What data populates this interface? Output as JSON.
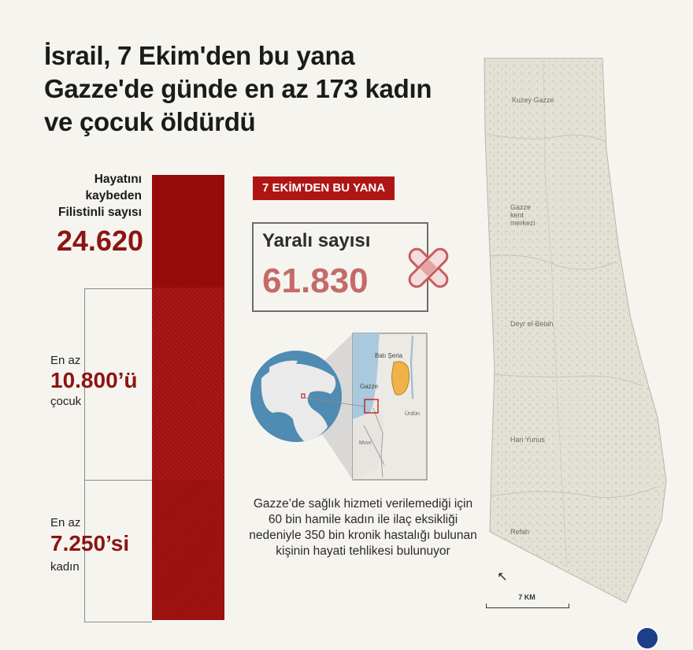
{
  "title": {
    "line1": "İsrail, 7 Ekim'den bu yana",
    "line2": "Gazze'de günde en az 173 kadın",
    "line3": "ve çocuk öldürdü"
  },
  "total": {
    "label_line1": "Hayatını",
    "label_line2": "kaybeden",
    "label_line3": "Filistinli sayısı",
    "value": "24.620"
  },
  "children": {
    "prefix": "En az",
    "value": "10.800’ü",
    "suffix": "çocuk"
  },
  "women": {
    "prefix": "En az",
    "value": "7.250’si",
    "suffix": "kadın"
  },
  "since_badge": "7 EKİM'DEN  BU YANA",
  "injured": {
    "label": "Yaralı sayısı",
    "value": "61.830"
  },
  "inset_map": {
    "west_bank": "Batı Şeria",
    "gaza": "Gazze",
    "jordan": "Ürdün",
    "egypt": "Mısır"
  },
  "note": "Gazze’de sağlık hizmeti verilemediği için 60 bin hamile kadın ile ilaç eksikliği nedeniyle 350 bin kronik hastalığı bulunan kişinin hayati tehlikesi bulunuyor",
  "map": {
    "regions": [
      "Kuzey Gazze",
      "Gazze kent merkezi",
      "Deyr el-Belah",
      "Han Yunus",
      "Refah"
    ],
    "scale": "7 KM",
    "north_icon": "north-arrow-icon"
  },
  "colors": {
    "dark_red": "#970c0b",
    "accent_red": "#b01515",
    "injured_red": "#c56a6a",
    "background": "#f6f4ef"
  }
}
